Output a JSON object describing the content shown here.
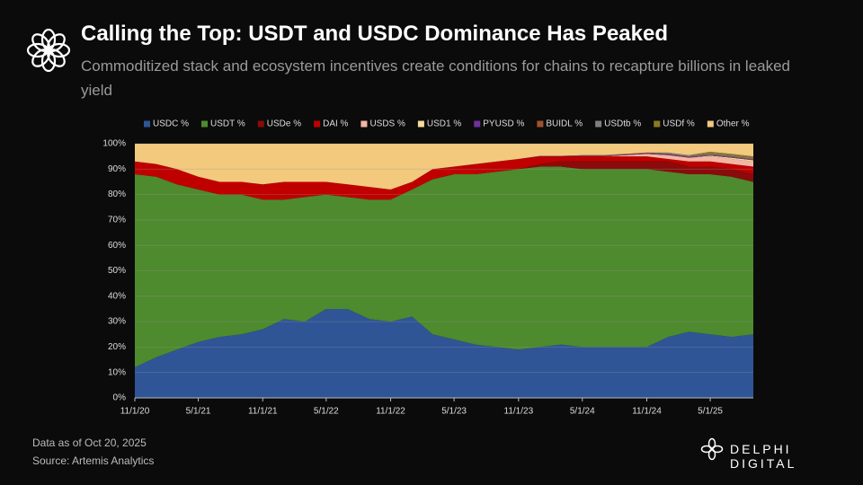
{
  "header": {
    "title": "Calling the Top: USDT and USDC Dominance Has Peaked",
    "subtitle": "Commoditized stack and ecosystem incentives create conditions for chains to recapture billions in leaked yield"
  },
  "footer": {
    "note": "Data as of Oct 20, 2025",
    "source": "Source: Artemis Analytics",
    "brand": "DELPHI DIGITAL"
  },
  "chart_data": {
    "type": "stacked-area",
    "x": [
      "11/1/20",
      "1/1/21",
      "3/1/21",
      "5/1/21",
      "7/1/21",
      "9/1/21",
      "11/1/21",
      "1/1/22",
      "3/1/22",
      "5/1/22",
      "7/1/22",
      "9/1/22",
      "11/1/22",
      "1/1/23",
      "3/1/23",
      "5/1/23",
      "7/1/23",
      "9/1/23",
      "11/1/23",
      "1/1/24",
      "3/1/24",
      "5/1/24",
      "7/1/24",
      "9/1/24",
      "11/1/24",
      "1/1/25",
      "3/1/25",
      "5/1/25",
      "7/1/25",
      "9/1/25"
    ],
    "xlim": [
      "11/1/20",
      "9/1/25"
    ],
    "xticks": [
      "11/1/20",
      "5/1/21",
      "11/1/21",
      "5/1/22",
      "11/1/22",
      "5/1/23",
      "11/1/23",
      "5/1/24",
      "11/1/24",
      "5/1/25"
    ],
    "ylim": [
      0,
      100
    ],
    "yticks": [
      {
        "value": 0,
        "label": "0%"
      },
      {
        "value": 10,
        "label": "10%"
      },
      {
        "value": 20,
        "label": "20%"
      },
      {
        "value": 30,
        "label": "30%"
      },
      {
        "value": 40,
        "label": "40%"
      },
      {
        "value": 50,
        "label": "50%"
      },
      {
        "value": 60,
        "label": "60%"
      },
      {
        "value": 70,
        "label": "70%"
      },
      {
        "value": 80,
        "label": "80%"
      },
      {
        "value": 90,
        "label": "90%"
      },
      {
        "value": 100,
        "label": "100%"
      }
    ],
    "grid": true,
    "legend": "top",
    "series": [
      {
        "name": "USDC %",
        "color": "#2f5597",
        "values": [
          12,
          16,
          19,
          22,
          24,
          25,
          27,
          31,
          30,
          35,
          35,
          31,
          30,
          32,
          25,
          23,
          21,
          20,
          19,
          20,
          21,
          20,
          20,
          20,
          20,
          24,
          26,
          25,
          24,
          25
        ]
      },
      {
        "name": "USDT %",
        "color": "#4e8a2e",
        "values": [
          76,
          71,
          65,
          60,
          56,
          55,
          51,
          47,
          49,
          45,
          44,
          47,
          48,
          50,
          61,
          65,
          67,
          69,
          71,
          71,
          70,
          70,
          70,
          70,
          70,
          65,
          62,
          63,
          63,
          60
        ]
      },
      {
        "name": "USDe %",
        "color": "#8b0a0a",
        "values": [
          0,
          0,
          0,
          0,
          0,
          0,
          0,
          0,
          0,
          0,
          0,
          0,
          0,
          0,
          0,
          0,
          0,
          0,
          0,
          1,
          2,
          3,
          3,
          3,
          3,
          4,
          3,
          3,
          3,
          3
        ]
      },
      {
        "name": "DAI %",
        "color": "#c00000",
        "values": [
          5,
          5,
          6,
          5,
          5,
          5,
          6,
          7,
          6,
          5,
          5,
          5,
          4,
          3,
          4,
          3,
          4,
          4,
          4,
          3,
          2,
          2,
          2,
          2,
          2,
          1,
          2,
          2,
          2,
          3
        ]
      },
      {
        "name": "USDS %",
        "color": "#f4b6a4",
        "values": [
          0,
          0,
          0,
          0,
          0,
          0,
          0,
          0,
          0,
          0,
          0,
          0,
          0,
          0,
          0,
          0,
          0,
          0,
          0,
          0,
          0,
          0,
          0,
          0.5,
          1,
          1.5,
          1.5,
          2,
          2,
          2
        ]
      },
      {
        "name": "USD1 %",
        "color": "#f6dc9a",
        "values": [
          0,
          0,
          0,
          0,
          0,
          0,
          0,
          0,
          0,
          0,
          0,
          0,
          0,
          0,
          0,
          0,
          0,
          0,
          0,
          0,
          0,
          0,
          0,
          0,
          0,
          0,
          0,
          0.3,
          0.5,
          0.5
        ]
      },
      {
        "name": "PYUSD %",
        "color": "#7030a0",
        "values": [
          0,
          0,
          0,
          0,
          0,
          0,
          0,
          0,
          0,
          0,
          0,
          0,
          0,
          0,
          0,
          0,
          0,
          0,
          0,
          0.2,
          0.2,
          0.2,
          0.2,
          0.2,
          0.2,
          0.2,
          0.2,
          0.2,
          0.2,
          0.2
        ]
      },
      {
        "name": "BUIDL %",
        "color": "#a0522d",
        "values": [
          0,
          0,
          0,
          0,
          0,
          0,
          0,
          0,
          0,
          0,
          0,
          0,
          0,
          0,
          0,
          0,
          0,
          0,
          0,
          0,
          0,
          0.3,
          0.3,
          0.3,
          0.3,
          0.3,
          0.3,
          0.3,
          0.3,
          0.3
        ]
      },
      {
        "name": "USDtb %",
        "color": "#7f7f7f",
        "values": [
          0,
          0,
          0,
          0,
          0,
          0,
          0,
          0,
          0,
          0,
          0,
          0,
          0,
          0,
          0,
          0,
          0,
          0,
          0,
          0,
          0,
          0,
          0,
          0,
          0,
          0.5,
          0.5,
          0.5,
          0.5,
          0.5
        ]
      },
      {
        "name": "USDf %",
        "color": "#8c7a22",
        "values": [
          0,
          0,
          0,
          0,
          0,
          0,
          0,
          0,
          0,
          0,
          0,
          0,
          0,
          0,
          0,
          0,
          0,
          0,
          0,
          0,
          0,
          0,
          0,
          0,
          0,
          0,
          0,
          0.5,
          0.5,
          0.5
        ]
      },
      {
        "name": "Other  %",
        "color": "#f2c97d",
        "values": [
          7,
          8,
          10,
          13,
          15,
          15,
          16,
          15,
          15,
          15,
          16,
          17,
          18,
          15,
          10,
          9,
          8,
          7,
          6,
          4.8,
          4.8,
          4.5,
          4.5,
          4,
          3.5,
          3.5,
          4.5,
          3.2,
          4,
          5
        ]
      }
    ]
  }
}
